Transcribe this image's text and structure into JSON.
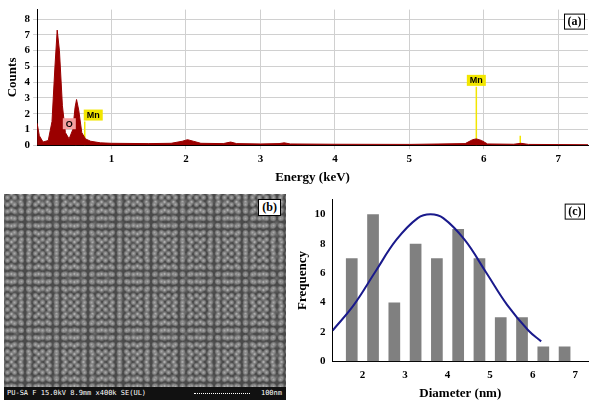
{
  "chart_data": [
    {
      "panel_label": "(a)",
      "type": "line",
      "x_label": "Energy (keV)",
      "y_label": "Counts",
      "x": [
        0,
        0.03,
        0.08,
        0.15,
        0.2,
        0.24,
        0.27,
        0.3,
        0.34,
        0.38,
        0.43,
        0.48,
        0.51,
        0.53,
        0.56,
        0.6,
        0.65,
        0.72,
        0.85,
        1.0,
        1.5,
        1.8,
        1.95,
        2.02,
        2.1,
        2.2,
        2.5,
        2.6,
        2.68,
        3.0,
        3.25,
        3.32,
        3.4,
        4.0,
        5.0,
        5.75,
        5.85,
        5.9,
        5.97,
        6.05,
        6.4,
        6.5,
        6.6,
        7.0,
        7.4
      ],
      "values": [
        1.4,
        0.6,
        0.2,
        0.3,
        1.5,
        5.0,
        7.3,
        6.0,
        2.5,
        0.8,
        0.4,
        1.0,
        2.4,
        2.9,
        2.2,
        0.8,
        0.4,
        0.25,
        0.15,
        0.12,
        0.1,
        0.12,
        0.25,
        0.35,
        0.25,
        0.12,
        0.1,
        0.2,
        0.1,
        0.08,
        0.1,
        0.15,
        0.08,
        0.06,
        0.05,
        0.1,
        0.35,
        0.4,
        0.3,
        0.08,
        0.06,
        0.12,
        0.05,
        0.04,
        0.03
      ],
      "color": "#9b0000",
      "xlim": [
        0,
        7.4
      ],
      "xticks": [
        1,
        2,
        3,
        4,
        5,
        6,
        7
      ],
      "ylim": [
        0,
        8.6
      ],
      "yticks": [
        0,
        1,
        2,
        3,
        4,
        5,
        6,
        7,
        8
      ],
      "grid": true,
      "markers": [
        {
          "label": "O",
          "energy": 0.52,
          "counts": 0.95,
          "color": "#f4a0a0"
        },
        {
          "label": "Mn",
          "energy": 0.64,
          "counts": 1.5,
          "color": "#f2e600"
        },
        {
          "label": "Mn",
          "energy": 5.9,
          "counts": 3.7,
          "color": "#f2e600"
        },
        {
          "label": null,
          "energy": 6.49,
          "counts": 0.6,
          "color": "#f2e600"
        }
      ]
    },
    {
      "panel_label": "(c)",
      "type": "histogram",
      "x_label": "Diameter (nm)",
      "y_label": "Frequency",
      "bins": [
        1.5,
        2.0,
        2.5,
        3.0,
        3.5,
        4.0,
        4.5,
        5.0,
        5.5,
        6.0,
        6.5,
        7.0
      ],
      "values": [
        7,
        10,
        4,
        8,
        7,
        9,
        7,
        3,
        3,
        1,
        1
      ],
      "color": "#808080",
      "fit": {
        "x": [
          1.3,
          1.8,
          2.3,
          2.8,
          3.3,
          3.6,
          3.9,
          4.4,
          4.9,
          5.4,
          5.9,
          6.2
        ],
        "values": [
          2.09,
          3.83,
          6.07,
          8.27,
          9.74,
          10,
          9.74,
          8.27,
          6.07,
          3.83,
          2.09,
          1.35
        ],
        "color": "#1a1a8c"
      },
      "xlim": [
        1.3,
        7.3
      ],
      "xticks": [
        2,
        3,
        4,
        5,
        6,
        7
      ],
      "ylim": [
        0,
        11
      ],
      "yticks": [
        0,
        2,
        4,
        6,
        8,
        10
      ],
      "grid": false
    }
  ],
  "image": {
    "panel_label": "(b)",
    "info": "PU-SA F 15.0kV 8.9mm x400k SE(UL)",
    "scale_bar": "100nm"
  }
}
